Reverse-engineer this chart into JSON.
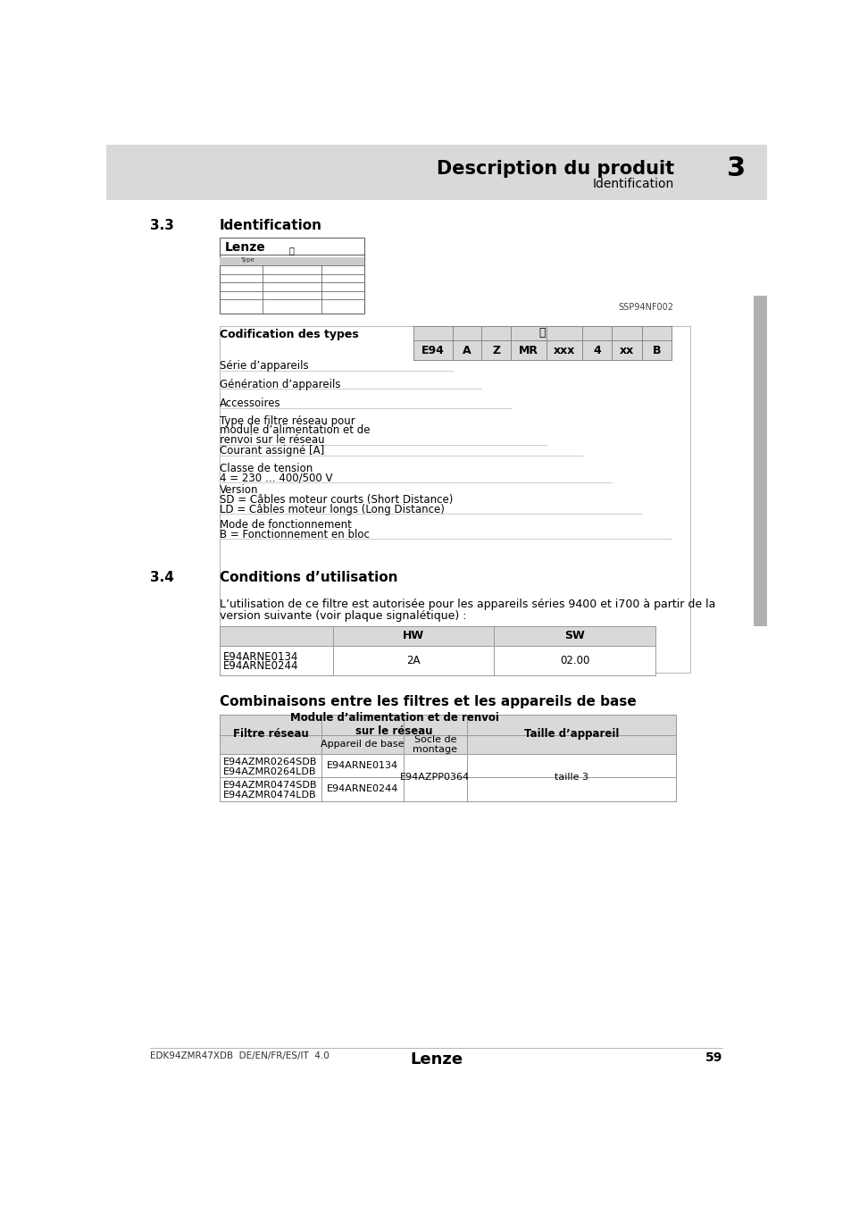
{
  "header_bg": "#d9d9d9",
  "header_title": "Description du produit",
  "header_subtitle": "Identification",
  "header_number": "3",
  "page_bg": "#ffffff",
  "section_33_label": "3.3",
  "section_33_title": "Identification",
  "type_code_label": "Codification des types",
  "type_code_headers": [
    "E94",
    "A",
    "Z",
    "MR",
    "xxx",
    "4",
    "xx",
    "B"
  ],
  "type_code_rows": [
    {
      "label": "Série d’appareils"
    },
    {
      "label": "Génération d’appareils"
    },
    {
      "label": "Accessoires"
    },
    {
      "label": "Type de filtre réseau pour\nmodule d’alimentation et de\nrenvoi sur le réseau"
    },
    {
      "label": "Courant assigné [A]"
    },
    {
      "label": "Classe de tension\n4 = 230 … 400/500 V"
    },
    {
      "label": "Version\nSD = Câbles moteur courts (Short Distance)\nLD = Câbles moteur longs (Long Distance)"
    },
    {
      "label": "Mode de fonctionnement\nB = Fonctionnement en bloc"
    }
  ],
  "ssp_label": "SSP94NF002",
  "section_34_label": "3.4",
  "section_34_title": "Conditions d’utilisation",
  "conditions_text": "L’utilisation de ce filtre est autorisée pour les appareils séries 9400 et i700 à partir de la\nversion suivante (voir plaque signalétique) :",
  "combinaisons_title": "Combinaisons entre les filtres et les appareils de base",
  "footer_left": "EDK94ZMR47XDB  DE/EN/FR/ES/IT  4.0",
  "footer_page": "59",
  "sidebar_color": "#b0b0b0"
}
